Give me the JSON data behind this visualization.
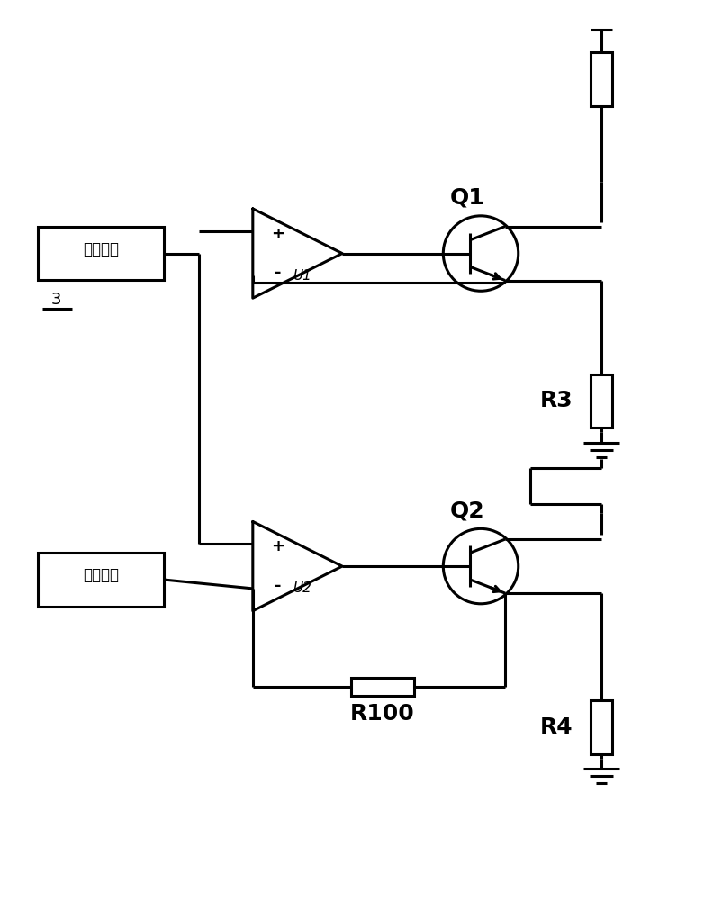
{
  "bg_color": "#ffffff",
  "line_color": "#000000",
  "box1_label": "峰値检测",
  "box1_sublabel": "3",
  "box2_label": "参考电压",
  "op1_label": "U1",
  "op2_label": "U2",
  "q1_label": "Q1",
  "q2_label": "Q2",
  "r3_label": "R3",
  "r4_label": "R4",
  "r100_label": "R100",
  "plus": "+",
  "minus": "-"
}
